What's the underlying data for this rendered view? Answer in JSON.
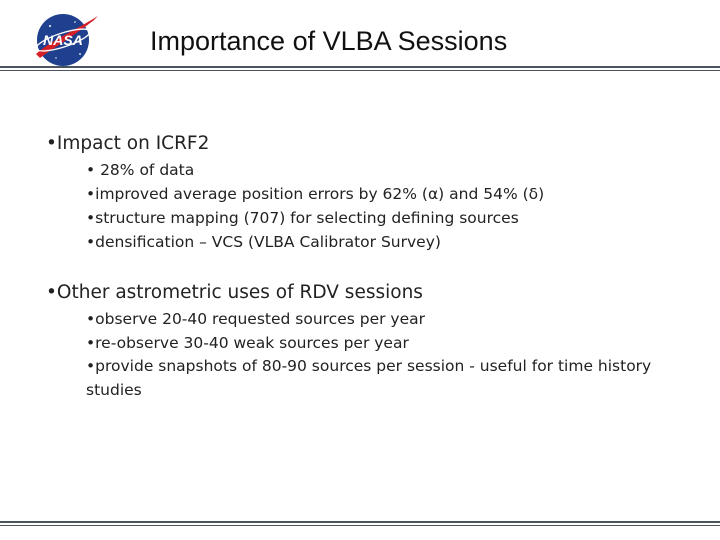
{
  "slide": {
    "title": "Importance of VLBA Sessions",
    "logo_text": "NASA",
    "sections": [
      {
        "heading": "•Impact on ICRF2",
        "items": [
          "• 28% of data",
          "•improved average position errors by 62% (α) and 54% (δ)",
          "•structure mapping (707) for selecting defining sources",
          "•densification – VCS (VLBA Calibrator Survey)"
        ]
      },
      {
        "heading": "•Other astrometric uses of RDV sessions",
        "items": [
          "•observe 20-40 requested sources per year",
          "•re-observe 30-40 weak sources per year",
          "•provide snapshots of 80-90 sources per session - useful for time history studies"
        ]
      }
    ]
  },
  "colors": {
    "nasa_blue": "#1f3f8f",
    "nasa_red": "#d42027",
    "rule": "#4a5560"
  }
}
